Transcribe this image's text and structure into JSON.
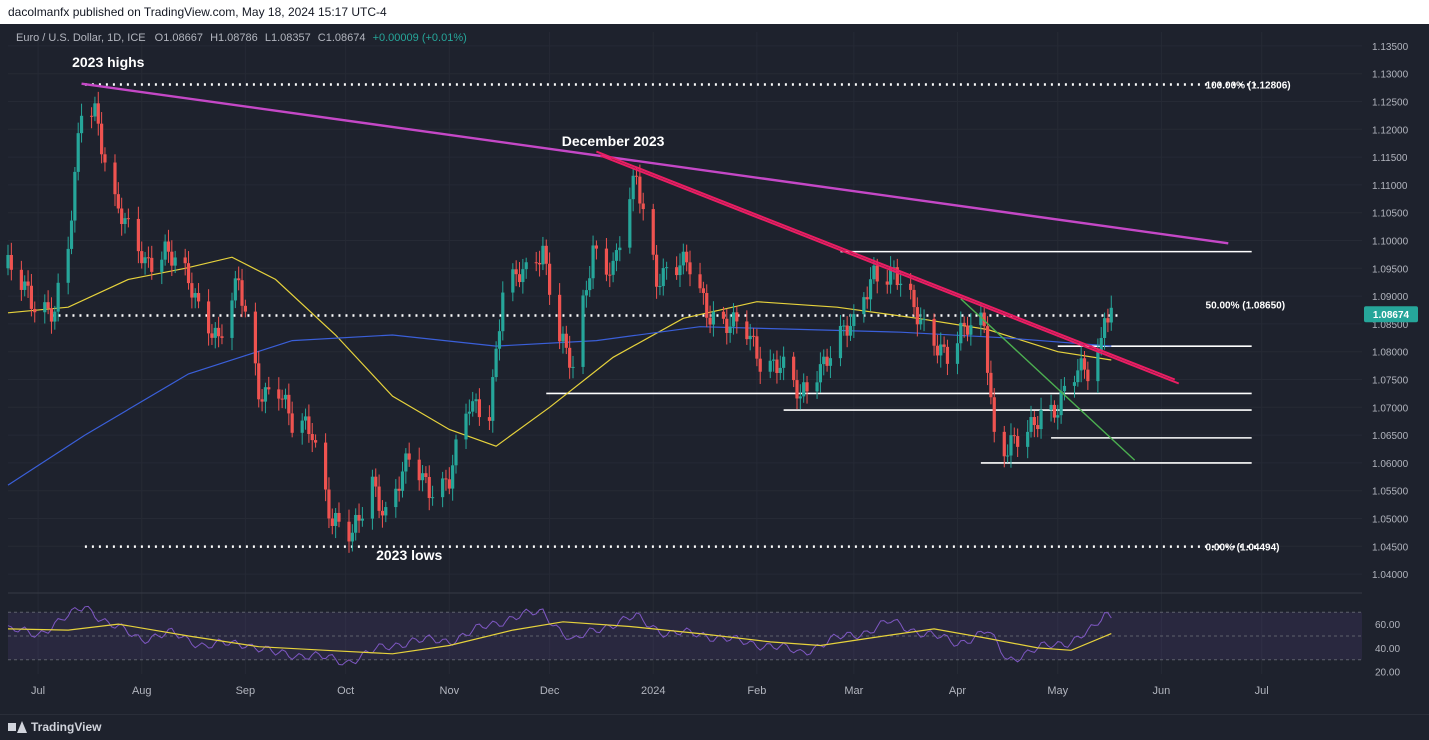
{
  "header": {
    "publisher": "dacolmanfx published on TradingView.com, May 18, 2024 15:17 UTC-4"
  },
  "footer": {
    "brand": "TradingView",
    "brand_icon": "tradingview-logo-icon"
  },
  "colors": {
    "background": "#1e222d",
    "text": "#b2b5be",
    "up": "#26a69a",
    "down": "#ef5350",
    "ma_fast": "#e6d23c",
    "ma_slow": "#3a5fd9",
    "trend_magenta": "#c548c7",
    "trend_pink": "#e91e63",
    "trend_green": "#4caf50",
    "rsi": "#7e57c2",
    "price_tag": "#26a69a"
  },
  "chart_data": {
    "type": "candlestick",
    "instrument": "Euro / U.S. Dollar, 1D, ICE",
    "ohlc_label": {
      "o": "O1.08667",
      "h": "H1.08786",
      "l": "L1.08357",
      "c": "C1.08674",
      "chg": "+0.00009 (+0.01%)"
    },
    "y_ticks": [
      "1.13500",
      "1.13000",
      "1.12500",
      "1.12000",
      "1.11500",
      "1.11000",
      "1.10500",
      "1.10000",
      "1.09500",
      "1.09000",
      "1.08500",
      "1.08000",
      "1.07500",
      "1.07000",
      "1.06500",
      "1.06000",
      "1.05500",
      "1.05000",
      "1.04500",
      "1.04000"
    ],
    "ylim": [
      1.0375,
      1.1375
    ],
    "x_range": [
      "2023-06-22",
      "2024-07-31"
    ],
    "x_ticks": [
      {
        "label": "Jul",
        "date": "2023-07-01"
      },
      {
        "label": "Aug",
        "date": "2023-08-01"
      },
      {
        "label": "Sep",
        "date": "2023-09-01"
      },
      {
        "label": "Oct",
        "date": "2023-10-01"
      },
      {
        "label": "Nov",
        "date": "2023-11-01"
      },
      {
        "label": "Dec",
        "date": "2023-12-01"
      },
      {
        "label": "2024",
        "date": "2024-01-01"
      },
      {
        "label": "Feb",
        "date": "2024-02-01"
      },
      {
        "label": "Mar",
        "date": "2024-03-01"
      },
      {
        "label": "Apr",
        "date": "2024-04-01"
      },
      {
        "label": "May",
        "date": "2024-05-01"
      },
      {
        "label": "Jun",
        "date": "2024-06-01"
      },
      {
        "label": "Jul",
        "date": "2024-07-01"
      }
    ],
    "price_tag": "1.08674",
    "closes": [
      [
        "2023-06-22",
        1.095
      ],
      [
        "2023-06-29",
        1.089
      ],
      [
        "2023-07-06",
        1.088
      ],
      [
        "2023-07-10",
        1.098
      ],
      [
        "2023-07-14",
        1.123
      ],
      [
        "2023-07-18",
        1.124
      ],
      [
        "2023-07-24",
        1.107
      ],
      [
        "2023-07-28",
        1.101
      ],
      [
        "2023-08-02",
        1.096
      ],
      [
        "2023-08-08",
        1.099
      ],
      [
        "2023-08-14",
        1.093
      ],
      [
        "2023-08-18",
        1.088
      ],
      [
        "2023-08-24",
        1.083
      ],
      [
        "2023-08-30",
        1.092
      ],
      [
        "2023-09-05",
        1.073
      ],
      [
        "2023-09-11",
        1.074
      ],
      [
        "2023-09-15",
        1.066
      ],
      [
        "2023-09-21",
        1.066
      ],
      [
        "2023-09-27",
        1.05
      ],
      [
        "2023-10-03",
        1.046
      ],
      [
        "2023-10-09",
        1.057
      ],
      [
        "2023-10-13",
        1.051
      ],
      [
        "2023-10-20",
        1.06
      ],
      [
        "2023-10-26",
        1.056
      ],
      [
        "2023-11-01",
        1.057
      ],
      [
        "2023-11-07",
        1.07
      ],
      [
        "2023-11-13",
        1.07
      ],
      [
        "2023-11-17",
        1.091
      ],
      [
        "2023-11-24",
        1.094
      ],
      [
        "2023-11-29",
        1.099
      ],
      [
        "2023-12-04",
        1.083
      ],
      [
        "2023-12-08",
        1.076
      ],
      [
        "2023-12-14",
        1.099
      ],
      [
        "2023-12-20",
        1.095
      ],
      [
        "2023-12-27",
        1.111
      ],
      [
        "2024-01-02",
        1.094
      ],
      [
        "2024-01-08",
        1.095
      ],
      [
        "2024-01-12",
        1.095
      ],
      [
        "2024-01-17",
        1.088
      ],
      [
        "2024-01-23",
        1.085
      ],
      [
        "2024-01-29",
        1.083
      ],
      [
        "2024-02-02",
        1.079
      ],
      [
        "2024-02-08",
        1.078
      ],
      [
        "2024-02-14",
        1.071
      ],
      [
        "2024-02-20",
        1.078
      ],
      [
        "2024-02-26",
        1.083
      ],
      [
        "2024-03-01",
        1.084
      ],
      [
        "2024-03-07",
        1.095
      ],
      [
        "2024-03-13",
        1.094
      ],
      [
        "2024-03-19",
        1.087
      ],
      [
        "2024-03-25",
        1.083
      ],
      [
        "2024-03-29",
        1.079
      ],
      [
        "2024-04-04",
        1.084
      ],
      [
        "2024-04-09",
        1.086
      ],
      [
        "2024-04-12",
        1.065
      ],
      [
        "2024-04-16",
        1.062
      ],
      [
        "2024-04-22",
        1.065
      ],
      [
        "2024-04-26",
        1.07
      ],
      [
        "2024-05-01",
        1.07
      ],
      [
        "2024-05-07",
        1.076
      ],
      [
        "2024-05-10",
        1.077
      ],
      [
        "2024-05-14",
        1.082
      ],
      [
        "2024-05-15",
        1.088
      ],
      [
        "2024-05-17",
        1.0867
      ]
    ],
    "moving_averages": [
      {
        "name": "fast",
        "color": "#e6d23c",
        "points": [
          [
            "2023-06-22",
            1.087
          ],
          [
            "2023-07-10",
            1.088
          ],
          [
            "2023-07-28",
            1.093
          ],
          [
            "2023-08-14",
            1.095
          ],
          [
            "2023-08-28",
            1.097
          ],
          [
            "2023-09-10",
            1.093
          ],
          [
            "2023-09-28",
            1.083
          ],
          [
            "2023-10-15",
            1.072
          ],
          [
            "2023-11-01",
            1.066
          ],
          [
            "2023-11-15",
            1.063
          ],
          [
            "2023-12-01",
            1.07
          ],
          [
            "2023-12-20",
            1.079
          ],
          [
            "2024-01-10",
            1.086
          ],
          [
            "2024-02-01",
            1.089
          ],
          [
            "2024-02-25",
            1.088
          ],
          [
            "2024-03-20",
            1.086
          ],
          [
            "2024-04-10",
            1.084
          ],
          [
            "2024-05-01",
            1.08
          ],
          [
            "2024-05-17",
            1.0785
          ]
        ]
      },
      {
        "name": "slow",
        "color": "#3a5fd9",
        "points": [
          [
            "2023-06-22",
            1.056
          ],
          [
            "2023-07-15",
            1.065
          ],
          [
            "2023-08-15",
            1.076
          ],
          [
            "2023-09-15",
            1.082
          ],
          [
            "2023-10-15",
            1.083
          ],
          [
            "2023-11-15",
            1.081
          ],
          [
            "2023-12-15",
            1.082
          ],
          [
            "2024-01-15",
            1.0845
          ],
          [
            "2024-02-15",
            1.084
          ],
          [
            "2024-03-15",
            1.0835
          ],
          [
            "2024-04-15",
            1.0825
          ],
          [
            "2024-05-17",
            1.081
          ]
        ]
      }
    ],
    "horizontal_levels": [
      {
        "price": 1.12806,
        "from": "2023-07-15",
        "to": "2024-06-30",
        "style": "dotted"
      },
      {
        "price": 1.0865,
        "from": "2023-07-05",
        "to": "2024-05-20",
        "style": "dotted"
      },
      {
        "price": 1.04494,
        "from": "2023-07-15",
        "to": "2024-06-30",
        "style": "dotted"
      },
      {
        "price": 1.098,
        "from": "2024-02-26",
        "to": "2024-06-28",
        "style": "solid"
      },
      {
        "price": 1.081,
        "from": "2024-05-01",
        "to": "2024-06-28",
        "style": "solid"
      },
      {
        "price": 1.0725,
        "from": "2023-11-30",
        "to": "2024-06-28",
        "style": "solid"
      },
      {
        "price": 1.0695,
        "from": "2024-02-09",
        "to": "2024-06-28",
        "style": "solid"
      },
      {
        "price": 1.0645,
        "from": "2024-04-29",
        "to": "2024-06-28",
        "style": "solid"
      },
      {
        "price": 1.06,
        "from": "2024-04-08",
        "to": "2024-06-28",
        "style": "solid"
      }
    ],
    "trendlines": [
      {
        "color": "#c548c7",
        "from": [
          "2023-07-14",
          1.1282
        ],
        "to": [
          "2024-06-21",
          1.0995
        ]
      },
      {
        "color": "#e91e63",
        "from": [
          "2023-12-15",
          1.116
        ],
        "to": [
          "2024-06-05",
          1.075
        ]
      },
      {
        "color": "#4caf50",
        "from": [
          "2024-04-02",
          1.0895
        ],
        "to": [
          "2024-05-24",
          1.0605
        ]
      }
    ],
    "annotations": [
      {
        "text": "2023 highs",
        "date": "2023-07-22",
        "price": 1.1312
      },
      {
        "text": "December 2023",
        "date": "2023-12-20",
        "price": 1.117
      },
      {
        "text": "2023 lows",
        "date": "2023-10-20",
        "price": 1.0425
      },
      {
        "text": "100.00% (1.12806)",
        "date": "2024-06-16",
        "price": 1.12806
      },
      {
        "text": "50.00% (1.08650)",
        "date": "2024-06-16",
        "price": 1.0885
      },
      {
        "text": "0.00% (1.04494)",
        "date": "2024-06-16",
        "price": 1.04494
      }
    ],
    "rsi": {
      "y_ticks": [
        "60.00",
        "40.00",
        "20.00"
      ],
      "ylim": [
        18,
        82
      ],
      "band": [
        30,
        70
      ],
      "values": [
        [
          "2023-06-22",
          55
        ],
        [
          "2023-07-01",
          52
        ],
        [
          "2023-07-10",
          66
        ],
        [
          "2023-07-15",
          76
        ],
        [
          "2023-07-22",
          60
        ],
        [
          "2023-08-01",
          48
        ],
        [
          "2023-08-10",
          52
        ],
        [
          "2023-08-20",
          42
        ],
        [
          "2023-09-01",
          44
        ],
        [
          "2023-09-10",
          35
        ],
        [
          "2023-09-20",
          34
        ],
        [
          "2023-10-01",
          28
        ],
        [
          "2023-10-10",
          38
        ],
        [
          "2023-10-20",
          46
        ],
        [
          "2023-11-01",
          46
        ],
        [
          "2023-11-10",
          56
        ],
        [
          "2023-11-20",
          66
        ],
        [
          "2023-11-29",
          70
        ],
        [
          "2023-12-08",
          45
        ],
        [
          "2023-12-15",
          56
        ],
        [
          "2023-12-27",
          66
        ],
        [
          "2024-01-05",
          52
        ],
        [
          "2024-01-15",
          52
        ],
        [
          "2024-01-25",
          46
        ],
        [
          "2024-02-05",
          42
        ],
        [
          "2024-02-14",
          36
        ],
        [
          "2024-02-25",
          48
        ],
        [
          "2024-03-05",
          54
        ],
        [
          "2024-03-12",
          62
        ],
        [
          "2024-03-20",
          54
        ],
        [
          "2024-04-01",
          44
        ],
        [
          "2024-04-10",
          54
        ],
        [
          "2024-04-16",
          30
        ],
        [
          "2024-04-26",
          40
        ],
        [
          "2024-05-05",
          46
        ],
        [
          "2024-05-12",
          56
        ],
        [
          "2024-05-15",
          68
        ],
        [
          "2024-05-17",
          66
        ]
      ],
      "signal": [
        [
          "2023-06-22",
          56
        ],
        [
          "2023-07-10",
          55
        ],
        [
          "2023-07-25",
          60
        ],
        [
          "2023-08-15",
          50
        ],
        [
          "2023-09-05",
          41
        ],
        [
          "2023-09-25",
          38
        ],
        [
          "2023-10-15",
          35
        ],
        [
          "2023-11-01",
          42
        ],
        [
          "2023-11-20",
          55
        ],
        [
          "2023-12-05",
          62
        ],
        [
          "2023-12-25",
          58
        ],
        [
          "2024-01-15",
          52
        ],
        [
          "2024-02-05",
          45
        ],
        [
          "2024-02-20",
          42
        ],
        [
          "2024-03-10",
          50
        ],
        [
          "2024-03-25",
          56
        ],
        [
          "2024-04-10",
          48
        ],
        [
          "2024-04-25",
          40
        ],
        [
          "2024-05-05",
          38
        ],
        [
          "2024-05-17",
          52
        ]
      ]
    }
  }
}
